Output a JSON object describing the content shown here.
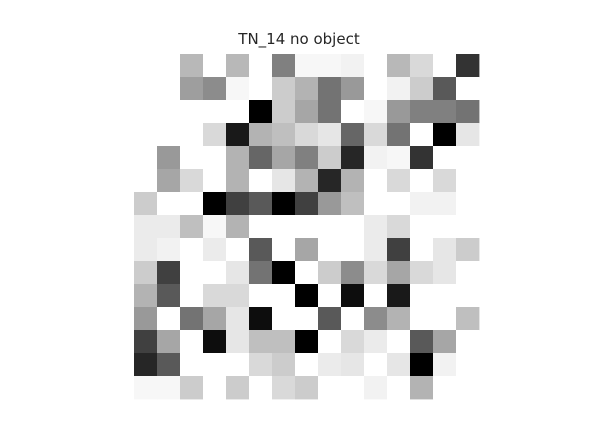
{
  "chart_data": {
    "type": "heatmap",
    "title": "TN_14 no object",
    "colormap": "gray_r",
    "value_range": [
      0,
      1
    ],
    "axes_visible": false,
    "grid": false,
    "xlabel": "",
    "ylabel": "",
    "rows": 15,
    "cols": 15,
    "values": [
      [
        0.0,
        0.0,
        0.28,
        0.0,
        0.28,
        0.0,
        0.5,
        0.03,
        0.03,
        0.05,
        0.0,
        0.28,
        0.15,
        0.0,
        0.8
      ],
      [
        0.0,
        0.0,
        0.38,
        0.45,
        0.03,
        0.0,
        0.2,
        0.3,
        0.55,
        0.4,
        0.0,
        0.05,
        0.2,
        0.65,
        0.0
      ],
      [
        0.0,
        0.0,
        0.0,
        0.0,
        0.0,
        1.0,
        0.2,
        0.35,
        0.55,
        0.0,
        0.03,
        0.4,
        0.5,
        0.5,
        0.55
      ],
      [
        0.0,
        0.0,
        0.0,
        0.15,
        0.9,
        0.3,
        0.25,
        0.15,
        0.1,
        0.6,
        0.15,
        0.55,
        0.0,
        1.0,
        0.1
      ],
      [
        0.0,
        0.4,
        0.0,
        0.0,
        0.3,
        0.6,
        0.35,
        0.5,
        0.2,
        0.85,
        0.05,
        0.03,
        0.8,
        0.0,
        0.0
      ],
      [
        0.0,
        0.35,
        0.15,
        0.0,
        0.3,
        0.0,
        0.1,
        0.3,
        0.85,
        0.3,
        0.0,
        0.15,
        0.0,
        0.15,
        0.0
      ],
      [
        0.2,
        0.0,
        0.0,
        1.0,
        0.75,
        0.65,
        1.0,
        0.75,
        0.4,
        0.25,
        0.0,
        0.0,
        0.05,
        0.05,
        0.0
      ],
      [
        0.08,
        0.08,
        0.25,
        0.03,
        0.3,
        0.0,
        0.0,
        0.0,
        0.0,
        0.0,
        0.08,
        0.15,
        0.0,
        0.0,
        0.0
      ],
      [
        0.08,
        0.05,
        0.0,
        0.08,
        0.0,
        0.65,
        0.0,
        0.35,
        0.0,
        0.0,
        0.08,
        0.75,
        0.0,
        0.1,
        0.2
      ],
      [
        0.2,
        0.75,
        0.0,
        0.0,
        0.1,
        0.55,
        1.0,
        0.0,
        0.2,
        0.45,
        0.15,
        0.35,
        0.15,
        0.1,
        0.0
      ],
      [
        0.3,
        0.65,
        0.0,
        0.15,
        0.15,
        0.0,
        0.0,
        1.0,
        0.0,
        0.95,
        0.0,
        0.9,
        0.0,
        0.0,
        0.0
      ],
      [
        0.4,
        0.0,
        0.55,
        0.35,
        0.1,
        0.95,
        0.0,
        0.0,
        0.65,
        0.0,
        0.45,
        0.3,
        0.0,
        0.0,
        0.25
      ],
      [
        0.75,
        0.35,
        0.0,
        0.95,
        0.1,
        0.25,
        0.25,
        1.0,
        0.0,
        0.15,
        0.08,
        0.0,
        0.65,
        0.35,
        0.0
      ],
      [
        0.85,
        0.65,
        0.0,
        0.0,
        0.0,
        0.15,
        0.2,
        0.0,
        0.08,
        0.1,
        0.0,
        0.1,
        1.0,
        0.05,
        0.0
      ],
      [
        0.03,
        0.03,
        0.2,
        0.0,
        0.2,
        0.0,
        0.15,
        0.2,
        0.0,
        0.0,
        0.05,
        0.0,
        0.3,
        0.0,
        0.0
      ]
    ]
  }
}
